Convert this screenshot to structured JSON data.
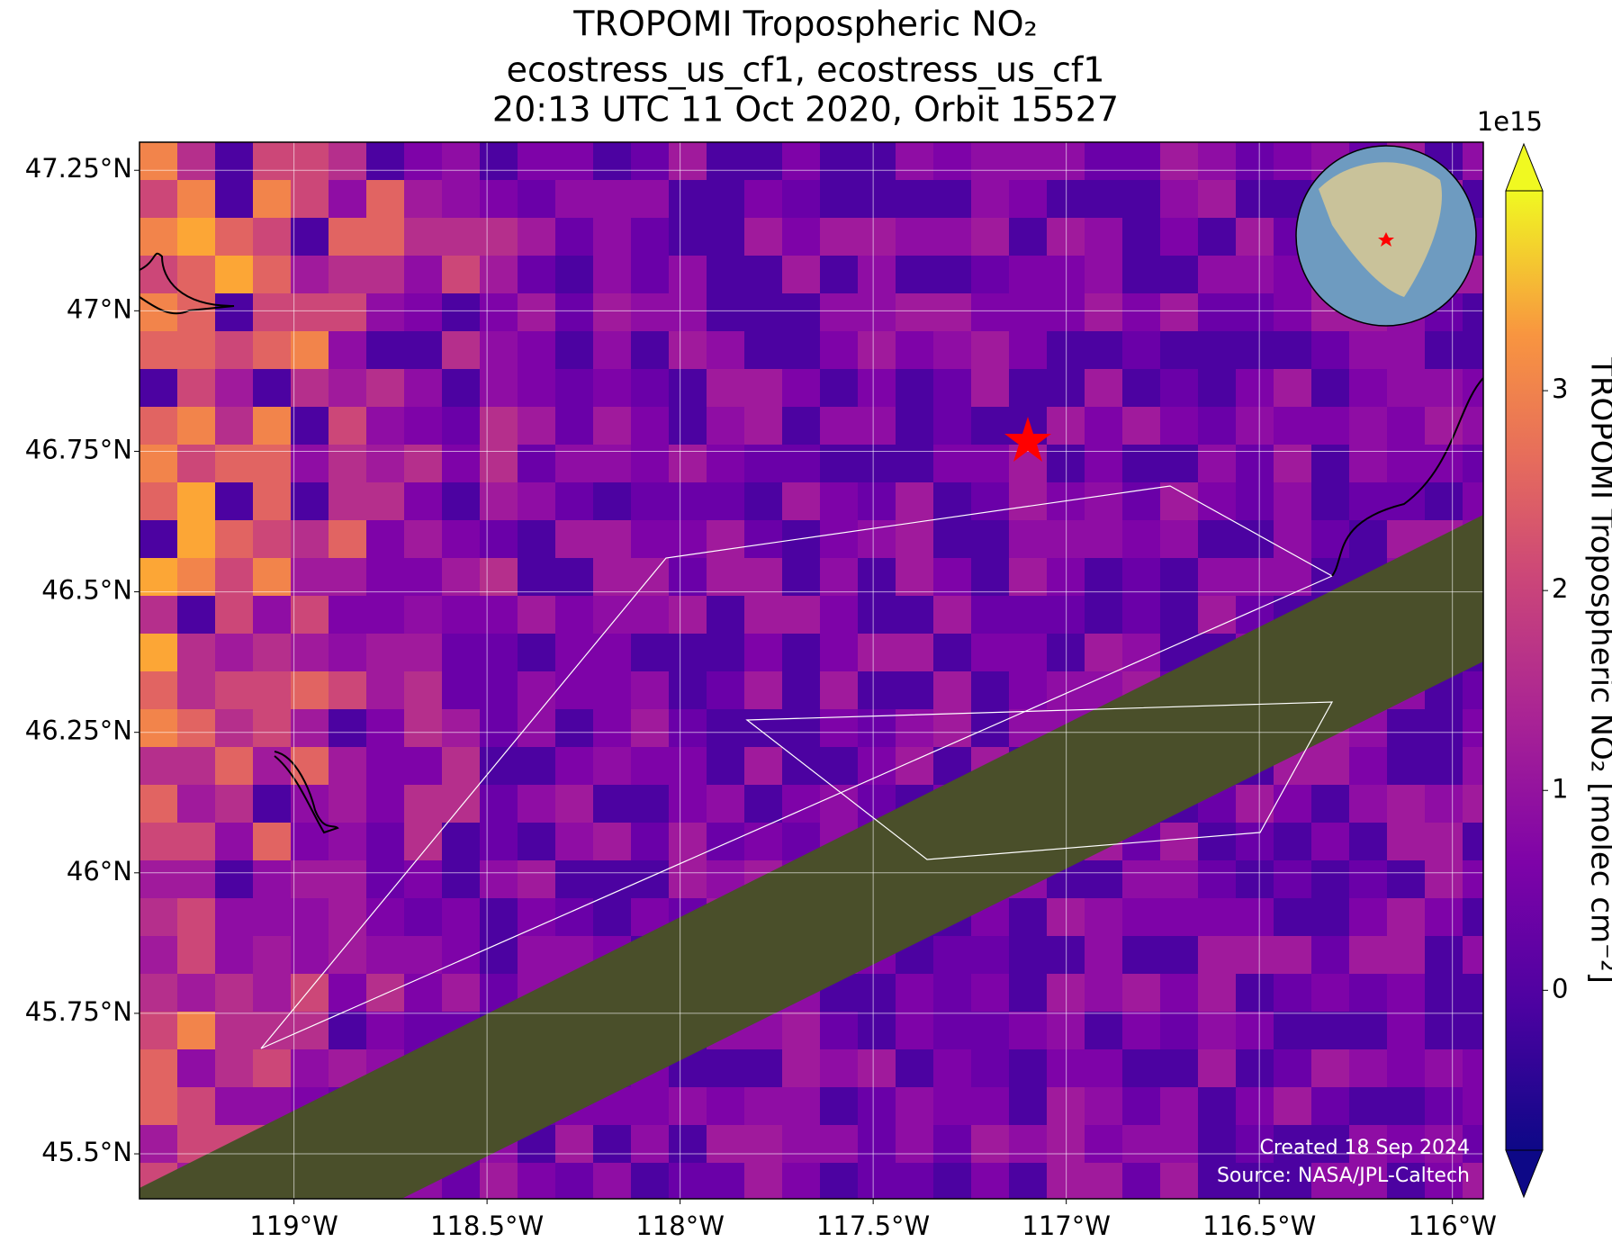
{
  "chart_data": {
    "type": "map",
    "title": "TROPOMI Tropospheric NO₂",
    "subtitle": "ecostress_us_cf1, ecostress_us_cf1",
    "subtitle2": "20:13 UTC 11 Oct 2020, Orbit 15527",
    "xlim": [
      -119.4,
      -115.92
    ],
    "ylim": [
      45.42,
      47.3
    ],
    "xticks": [
      {
        "value": -119,
        "label": "119°W"
      },
      {
        "value": -118.5,
        "label": "118.5°W"
      },
      {
        "value": -118,
        "label": "118°W"
      },
      {
        "value": -117.5,
        "label": "117.5°W"
      },
      {
        "value": -117,
        "label": "117°W"
      },
      {
        "value": -116.5,
        "label": "116.5°W"
      },
      {
        "value": -116,
        "label": "116°W"
      }
    ],
    "yticks": [
      {
        "value": 47.25,
        "label": "47.25°N"
      },
      {
        "value": 47,
        "label": "47°N"
      },
      {
        "value": 46.75,
        "label": "46.75°N"
      },
      {
        "value": 46.5,
        "label": "46.5°N"
      },
      {
        "value": 46.25,
        "label": "46.25°N"
      },
      {
        "value": 46,
        "label": "46°N"
      },
      {
        "value": 45.75,
        "label": "45.75°N"
      },
      {
        "value": 45.5,
        "label": "45.5°N"
      }
    ],
    "grid": true,
    "colorbar": {
      "label": "TROPOMI Tropospheric NO₂ [molec cm⁻²]",
      "offset_label": "1e15",
      "clim": [
        -0.8,
        4.0
      ],
      "ticks": [
        0,
        1,
        2,
        3
      ]
    },
    "credits": [
      "Created 18 Sep 2024",
      "Source: NASA/JPL-Caltech"
    ]
  }
}
